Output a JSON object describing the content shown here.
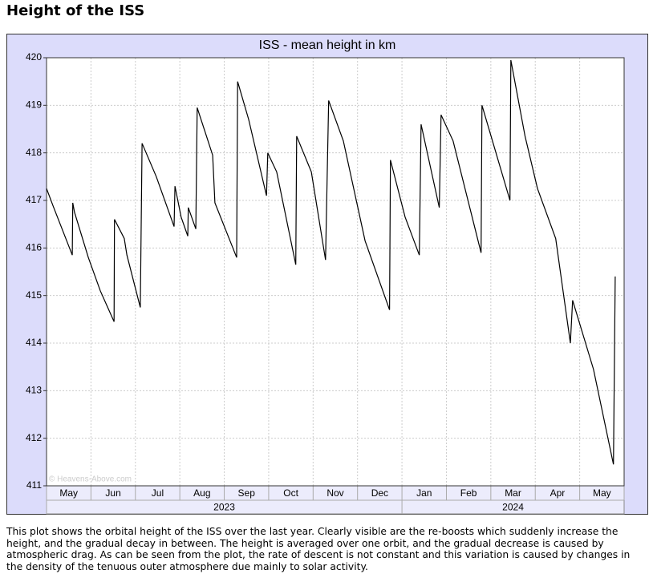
{
  "page_title": "Height of the ISS",
  "chart_data": {
    "type": "line",
    "title": "ISS - mean height in km",
    "categories": [
      "May",
      "Jun",
      "Jul",
      "Aug",
      "Sep",
      "Oct",
      "Nov",
      "Dec",
      "Jan",
      "Feb",
      "Mar",
      "Apr",
      "May"
    ],
    "year_ticks": [
      {
        "value": 0,
        "label": "2023"
      },
      {
        "value": 8,
        "label": "2024"
      }
    ],
    "xlim": [
      0,
      13
    ],
    "xticks": [
      0,
      1,
      2,
      3,
      4,
      5,
      6,
      7,
      8,
      9,
      10,
      11,
      12,
      13
    ],
    "ylim": [
      411,
      420
    ],
    "yticks": [
      411,
      412,
      413,
      414,
      415,
      416,
      417,
      418,
      419,
      420
    ],
    "grid": true,
    "watermark": "© Heavens-Above.com",
    "series": [
      {
        "name": "mean height",
        "color": "#000000",
        "x": [
          0,
          0.14,
          0.58,
          0.59,
          0.63,
          0.94,
          1.21,
          1.52,
          1.53,
          1.75,
          1.81,
          2.11,
          2.15,
          2.47,
          2.87,
          2.89,
          3.03,
          3.18,
          3.19,
          3.36,
          3.39,
          3.74,
          3.79,
          4.28,
          4.3,
          4.55,
          4.95,
          4.98,
          5.18,
          5.61,
          5.63,
          5.96,
          6.28,
          6.35,
          6.68,
          7.17,
          7.72,
          7.74,
          8.07,
          8.39,
          8.43,
          8.84,
          8.88,
          9.15,
          9.78,
          9.8,
          10.43,
          10.45,
          10.77,
          11.05,
          11.46,
          11.79,
          11.84,
          12.31,
          12.76,
          12.8
        ],
        "values": [
          417.25,
          416.9,
          415.85,
          416.95,
          416.75,
          415.8,
          415.1,
          414.45,
          416.6,
          416.2,
          415.85,
          414.75,
          418.2,
          417.5,
          416.45,
          417.3,
          416.65,
          416.25,
          416.85,
          416.4,
          418.95,
          417.95,
          416.95,
          415.8,
          419.5,
          418.7,
          417.1,
          418.0,
          417.6,
          415.65,
          418.35,
          417.6,
          415.75,
          419.1,
          418.25,
          416.15,
          414.7,
          417.85,
          416.65,
          415.85,
          418.6,
          416.85,
          418.8,
          418.25,
          415.9,
          419.0,
          417.0,
          419.95,
          418.35,
          417.25,
          416.2,
          414.0,
          414.9,
          413.45,
          411.45,
          415.4
        ]
      }
    ]
  },
  "description": "This plot shows the orbital height of the ISS over the last year. Clearly visible are the re-boosts which suddenly increase the height, and the gradual decay in between. The height is averaged over one orbit, and the gradual decrease is caused by atmospheric drag. As can be seen from the plot, the rate of descent is not constant and this variation is caused by changes in the density of the tenuous outer atmosphere due mainly to solar activity."
}
